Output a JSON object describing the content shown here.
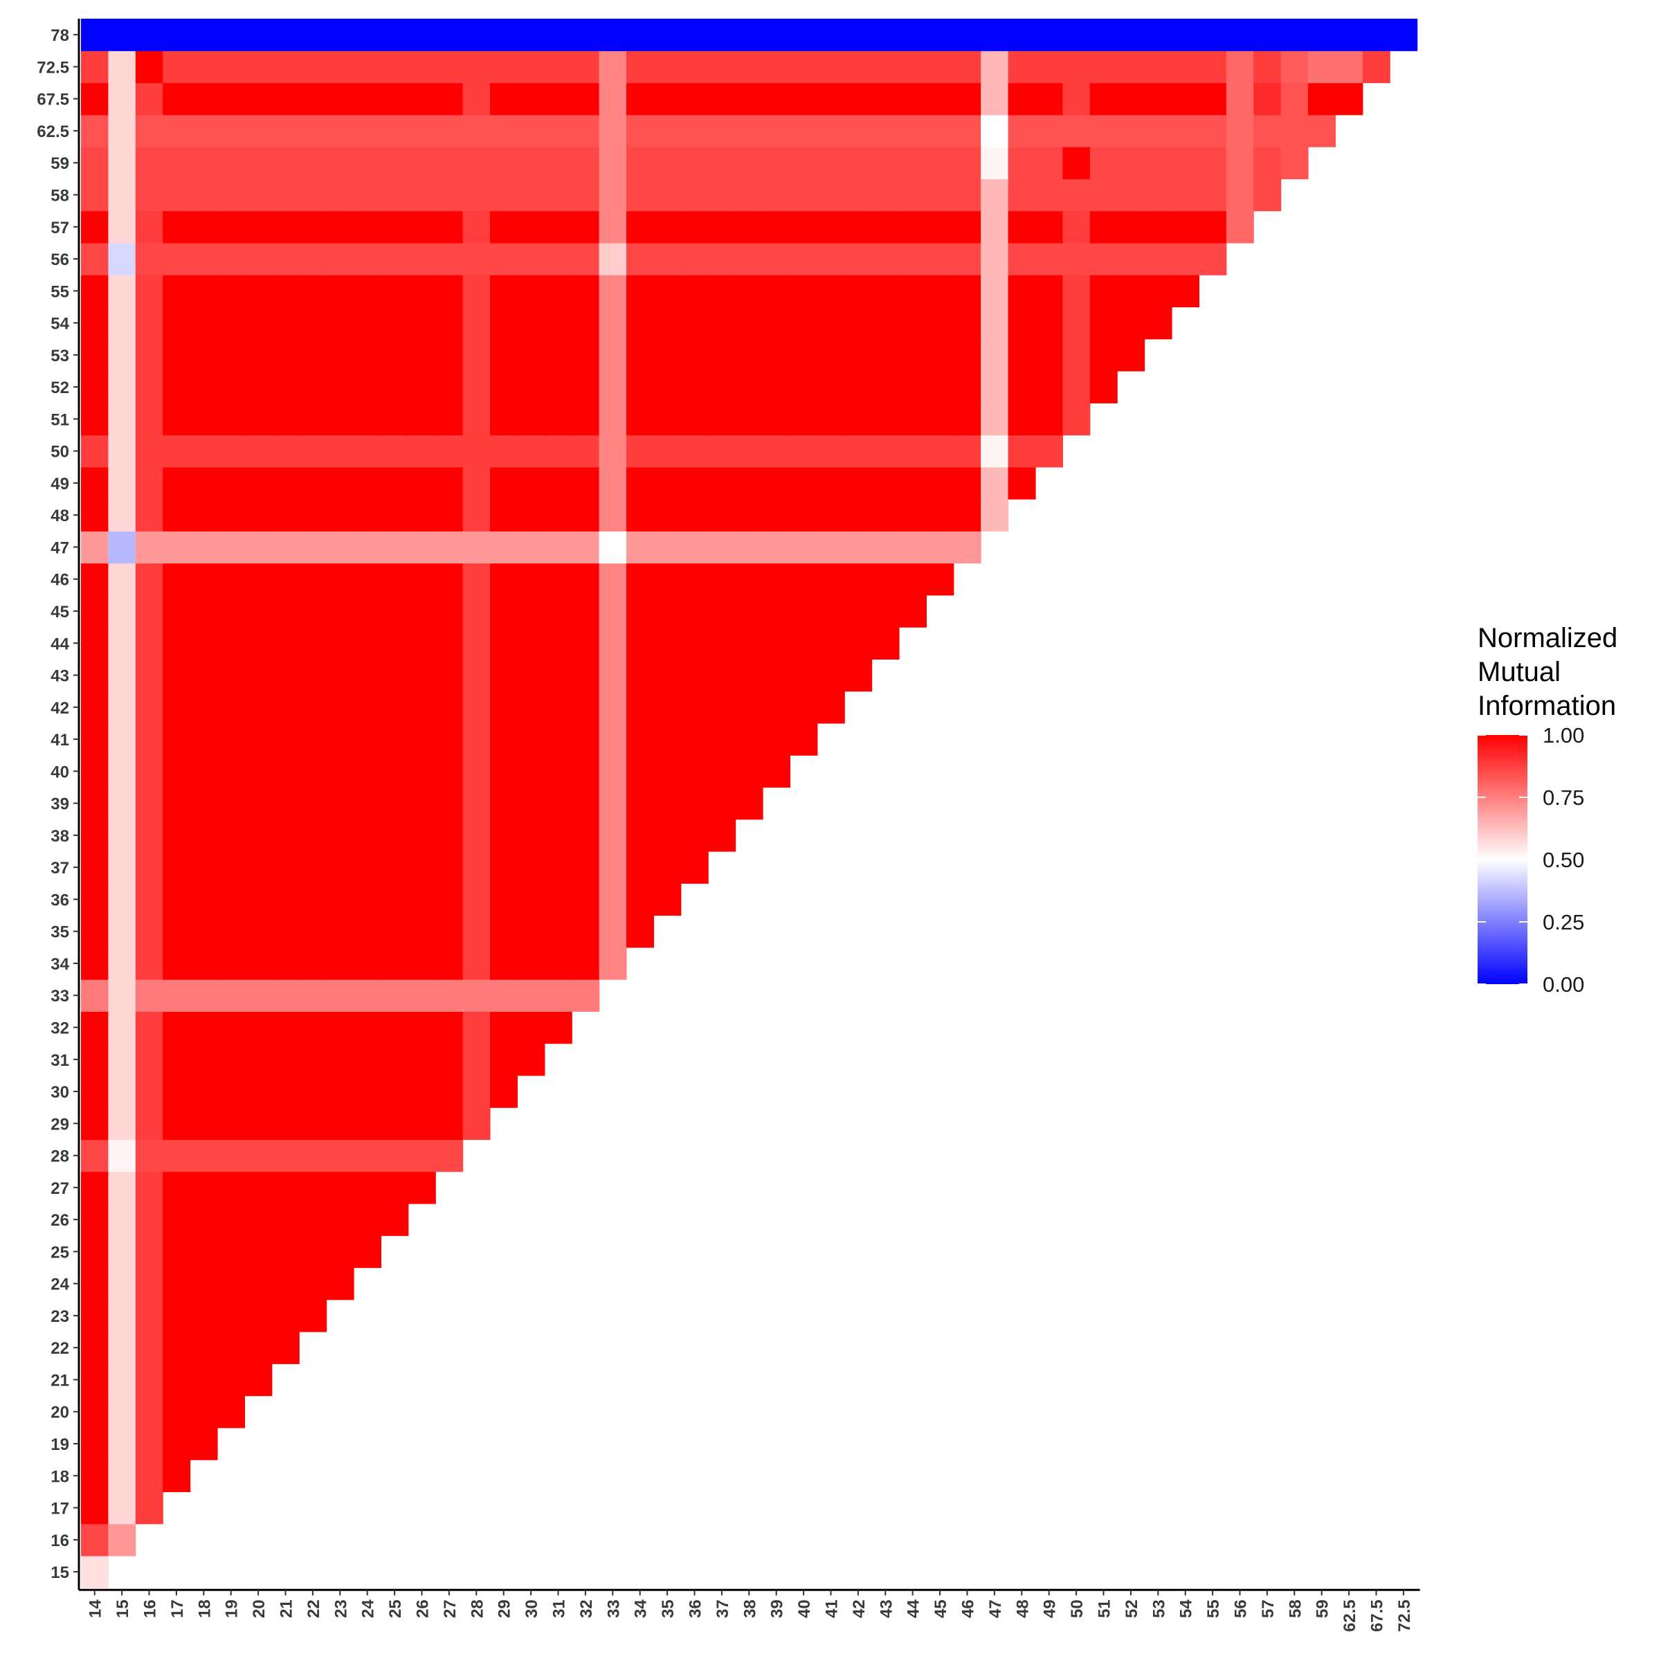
{
  "chart_data": {
    "type": "heatmap",
    "title": "",
    "xlabel": "",
    "ylabel": "",
    "x_categories": [
      "14",
      "15",
      "16",
      "17",
      "18",
      "19",
      "20",
      "21",
      "22",
      "23",
      "24",
      "25",
      "26",
      "27",
      "28",
      "29",
      "30",
      "31",
      "32",
      "33",
      "34",
      "35",
      "36",
      "37",
      "38",
      "39",
      "40",
      "41",
      "42",
      "43",
      "44",
      "45",
      "46",
      "47",
      "48",
      "49",
      "50",
      "51",
      "52",
      "53",
      "54",
      "55",
      "56",
      "57",
      "58",
      "59",
      "62.5",
      "67.5",
      "72.5"
    ],
    "y_categories": [
      "15",
      "16",
      "17",
      "18",
      "19",
      "20",
      "21",
      "22",
      "23",
      "24",
      "25",
      "26",
      "27",
      "28",
      "29",
      "30",
      "31",
      "32",
      "33",
      "34",
      "35",
      "36",
      "37",
      "38",
      "39",
      "40",
      "41",
      "42",
      "43",
      "44",
      "45",
      "46",
      "47",
      "48",
      "49",
      "50",
      "51",
      "52",
      "53",
      "54",
      "55",
      "56",
      "57",
      "58",
      "59",
      "62.5",
      "67.5",
      "72.5",
      "78"
    ],
    "value_range": [
      0,
      1
    ],
    "colorscale": {
      "low": "#0000ff",
      "mid": "#ffffff",
      "high": "#ff0000",
      "midpoint": 0.5
    },
    "legend": {
      "title": [
        "Normalized",
        "Mutual",
        "Information"
      ],
      "ticks": [
        "1.00",
        "0.75",
        "0.50",
        "0.25",
        "0.00"
      ],
      "tick_values": [
        1.0,
        0.75,
        0.5,
        0.25,
        0.0
      ],
      "position": "right"
    },
    "grid": false,
    "default_value": 1.0,
    "special_columns": {
      "14": 1.0,
      "15": 0.58,
      "16": 0.88,
      "28": 0.88,
      "33": 0.74,
      "47": 0.64,
      "50": 0.88,
      "56": 0.8,
      "57": 0.92,
      "58": 0.84
    },
    "special_rows": {
      "16": 0.86,
      "28": 0.86,
      "33": 0.76,
      "47": 0.7,
      "50": 0.88,
      "56": 0.86,
      "57": 1.0,
      "58": 0.86,
      "59": 0.86,
      "62.5": 0.84,
      "67.5": 1.0,
      "72.5": 0.88,
      "78": 0.0
    },
    "cell_overrides": [
      {
        "x": "14",
        "y": "15",
        "value": 0.56
      },
      {
        "x": "15",
        "y": "16",
        "value": 0.7
      },
      {
        "x": "14",
        "y": "16",
        "value": 0.86
      },
      {
        "x": "15",
        "y": "47",
        "value": 0.36
      },
      {
        "x": "15",
        "y": "56",
        "value": 0.42
      },
      {
        "x": "15",
        "y": "28",
        "value": 0.52
      },
      {
        "x": "33",
        "y": "47",
        "value": 0.5
      },
      {
        "x": "33",
        "y": "56",
        "value": 0.6
      },
      {
        "x": "47",
        "y": "50",
        "value": 0.52
      },
      {
        "x": "47",
        "y": "59",
        "value": 0.52
      },
      {
        "x": "47",
        "y": "62.5",
        "value": 0.5
      },
      {
        "x": "50",
        "y": "59",
        "value": 1.0
      },
      {
        "x": "16",
        "y": "72.5",
        "value": 1.0
      },
      {
        "x": "62.5",
        "y": "72.5",
        "value": 0.78
      },
      {
        "x": "59",
        "y": "72.5",
        "value": 0.78
      },
      {
        "x": "58",
        "y": "72.5",
        "value": 0.82
      }
    ]
  }
}
